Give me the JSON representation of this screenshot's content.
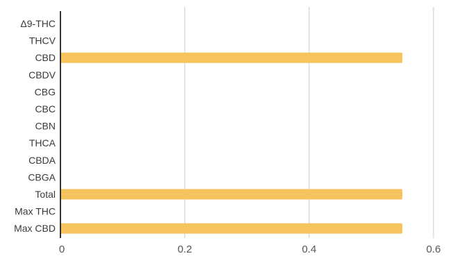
{
  "chart_data": {
    "type": "bar",
    "orientation": "horizontal",
    "categories": [
      "Δ9-THC",
      "THCV",
      "CBD",
      "CBDV",
      "CBG",
      "CBC",
      "CBN",
      "THCA",
      "CBDA",
      "CBGA",
      "Total",
      "Max THC",
      "Max CBD"
    ],
    "values": [
      0,
      0,
      0.55,
      0,
      0,
      0,
      0,
      0,
      0,
      0,
      0.55,
      0,
      0.55
    ],
    "xlim": [
      0,
      0.6
    ],
    "x_ticks": [
      0,
      0.2,
      0.4,
      0.6
    ],
    "x_tick_labels": [
      "0",
      "0.2",
      "0.4",
      "0.6"
    ],
    "grid": "vertical",
    "bar_color": "#f6c35c",
    "grid_color": "#c9c9c9",
    "axis_color": "#333333",
    "title": "",
    "xlabel": "",
    "ylabel": ""
  }
}
